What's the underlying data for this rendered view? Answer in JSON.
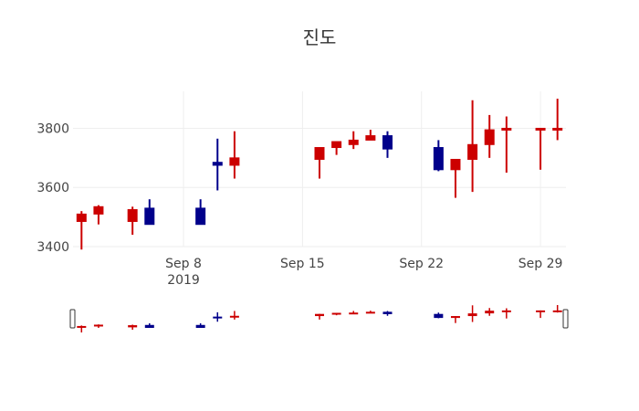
{
  "chart_data": {
    "type": "candlestick",
    "title": "진도",
    "colors": {
      "increasing": "#00008b",
      "decreasing": "#cc0000"
    },
    "x_ticks": [
      {
        "date": "2019-09-08",
        "label": "Sep 8",
        "sublabel": "2019"
      },
      {
        "date": "2019-09-15",
        "label": "Sep 15",
        "sublabel": ""
      },
      {
        "date": "2019-09-22",
        "label": "Sep 22",
        "sublabel": ""
      },
      {
        "date": "2019-09-29",
        "label": "Sep 29",
        "sublabel": ""
      }
    ],
    "y_ticks": [
      3400,
      3600,
      3800
    ],
    "xlim": [
      "2019-09-01T12:00",
      "2019-09-30T12:00"
    ],
    "ylim": [
      3400,
      3925
    ],
    "rangeslider": true,
    "grid": true,
    "candles": [
      {
        "date": "2019-09-02",
        "open": 3510,
        "high": 3520,
        "low": 3390,
        "close": 3485
      },
      {
        "date": "2019-09-03",
        "open": 3535,
        "high": 3540,
        "low": 3475,
        "close": 3510
      },
      {
        "date": "2019-09-05",
        "open": 3525,
        "high": 3535,
        "low": 3440,
        "close": 3485
      },
      {
        "date": "2019-09-06",
        "open": 3475,
        "high": 3560,
        "low": 3475,
        "close": 3530
      },
      {
        "date": "2019-09-09",
        "open": 3475,
        "high": 3560,
        "low": 3475,
        "close": 3530
      },
      {
        "date": "2019-09-10",
        "open": 3675,
        "high": 3765,
        "low": 3590,
        "close": 3685
      },
      {
        "date": "2019-09-11",
        "open": 3700,
        "high": 3790,
        "low": 3630,
        "close": 3675
      },
      {
        "date": "2019-09-16",
        "open": 3735,
        "high": 3735,
        "low": 3630,
        "close": 3695
      },
      {
        "date": "2019-09-17",
        "open": 3755,
        "high": 3755,
        "low": 3710,
        "close": 3735
      },
      {
        "date": "2019-09-18",
        "open": 3760,
        "high": 3790,
        "low": 3730,
        "close": 3745
      },
      {
        "date": "2019-09-19",
        "open": 3775,
        "high": 3795,
        "low": 3760,
        "close": 3760
      },
      {
        "date": "2019-09-20",
        "open": 3730,
        "high": 3790,
        "low": 3700,
        "close": 3775
      },
      {
        "date": "2019-09-23",
        "open": 3660,
        "high": 3760,
        "low": 3655,
        "close": 3735
      },
      {
        "date": "2019-09-24",
        "open": 3695,
        "high": 3695,
        "low": 3565,
        "close": 3660
      },
      {
        "date": "2019-09-25",
        "open": 3745,
        "high": 3895,
        "low": 3585,
        "close": 3695
      },
      {
        "date": "2019-09-26",
        "open": 3795,
        "high": 3845,
        "low": 3700,
        "close": 3745
      },
      {
        "date": "2019-09-27",
        "open": 3800,
        "high": 3840,
        "low": 3650,
        "close": 3795
      },
      {
        "date": "2019-09-29",
        "open": 3800,
        "high": 3800,
        "low": 3660,
        "close": 3795
      },
      {
        "date": "2019-09-30",
        "open": 3800,
        "high": 3900,
        "low": 3760,
        "close": 3795
      }
    ]
  }
}
